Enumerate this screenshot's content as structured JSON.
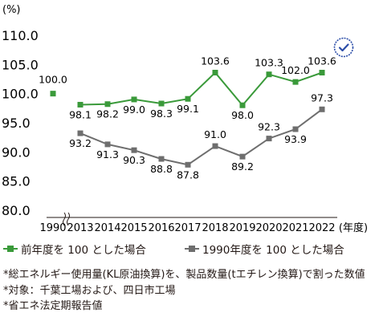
{
  "chart_data": {
    "type": "line",
    "y_unit": "(%)",
    "x_unit": "(年度)",
    "categories": [
      "1990",
      "2013",
      "2014",
      "2015",
      "2016",
      "2017",
      "2018",
      "2019",
      "2020",
      "2021",
      "2022"
    ],
    "y_ticks": [
      "80.0",
      "85.0",
      "90.0",
      "95.0",
      "100.0",
      "105.0",
      "110.0"
    ],
    "ylim": [
      80,
      110
    ],
    "axis_break": true,
    "grid": false,
    "legend_position": "bottom",
    "series": [
      {
        "name": "前年度を 100 とした場合",
        "color": "#3a9a3a",
        "marker": "square",
        "connected_from": "2013",
        "points": [
          {
            "x": "1990",
            "y": 100.0,
            "label": "100.0"
          },
          {
            "x": "2013",
            "y": 98.1,
            "label": "98.1"
          },
          {
            "x": "2014",
            "y": 98.2,
            "label": "98.2"
          },
          {
            "x": "2015",
            "y": 99.0,
            "label": "99.0"
          },
          {
            "x": "2016",
            "y": 98.3,
            "label": "98.3"
          },
          {
            "x": "2017",
            "y": 99.1,
            "label": "99.1"
          },
          {
            "x": "2018",
            "y": 103.6,
            "label": "103.6"
          },
          {
            "x": "2019",
            "y": 98.0,
            "label": "98.0"
          },
          {
            "x": "2020",
            "y": 103.3,
            "label": "103.3"
          },
          {
            "x": "2021",
            "y": 102.0,
            "label": "102.0"
          },
          {
            "x": "2022",
            "y": 103.6,
            "label": "103.6"
          }
        ]
      },
      {
        "name": "1990年度を 100 とした場合",
        "color": "#6e6e6e",
        "marker": "square",
        "connected_from": "2013",
        "points": [
          {
            "x": "2013",
            "y": 93.2,
            "label": "93.2"
          },
          {
            "x": "2014",
            "y": 91.3,
            "label": "91.3"
          },
          {
            "x": "2015",
            "y": 90.3,
            "label": "90.3"
          },
          {
            "x": "2016",
            "y": 88.8,
            "label": "88.8"
          },
          {
            "x": "2017",
            "y": 87.8,
            "label": "87.8"
          },
          {
            "x": "2018",
            "y": 91.0,
            "label": "91.0"
          },
          {
            "x": "2019",
            "y": 89.2,
            "label": "89.2"
          },
          {
            "x": "2020",
            "y": 92.3,
            "label": "92.3"
          },
          {
            "x": "2021",
            "y": 93.9,
            "label": "93.9"
          },
          {
            "x": "2022",
            "y": 97.3,
            "label": "97.3"
          }
        ]
      }
    ]
  },
  "legend": {
    "items": [
      {
        "label": "前年度を 100 とした場合",
        "color": "#3a9a3a"
      },
      {
        "label": "1990年度を 100 とした場合",
        "color": "#6e6e6e"
      }
    ]
  },
  "notes": [
    "*総エネルギー使用量(KL原油換算)を、製品数量(tエチレン換算)で割った数値",
    "*対象：千葉工場および、四日市工場",
    "*省エネ法定期報告値"
  ],
  "badge": {
    "icon": "verified-check-badge-icon",
    "color": "#2b4da8"
  }
}
